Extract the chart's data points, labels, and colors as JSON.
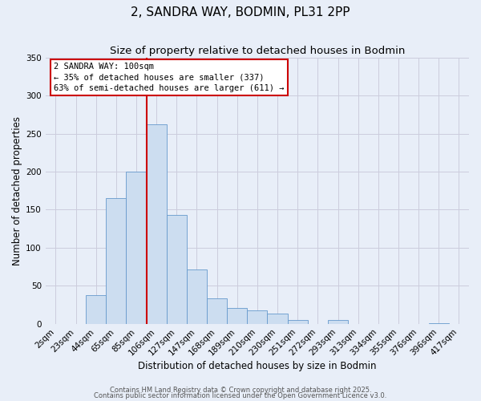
{
  "title": "2, SANDRA WAY, BODMIN, PL31 2PP",
  "subtitle": "Size of property relative to detached houses in Bodmin",
  "xlabel": "Distribution of detached houses by size in Bodmin",
  "ylabel": "Number of detached properties",
  "bar_labels": [
    "2sqm",
    "23sqm",
    "44sqm",
    "65sqm",
    "85sqm",
    "106sqm",
    "127sqm",
    "147sqm",
    "168sqm",
    "189sqm",
    "210sqm",
    "230sqm",
    "251sqm",
    "272sqm",
    "293sqm",
    "313sqm",
    "334sqm",
    "355sqm",
    "376sqm",
    "396sqm",
    "417sqm"
  ],
  "bar_values": [
    0,
    0,
    38,
    165,
    200,
    262,
    143,
    71,
    33,
    21,
    17,
    13,
    5,
    0,
    5,
    0,
    0,
    0,
    0,
    1,
    0
  ],
  "bar_color": "#ccddf0",
  "bar_edge_color": "#6699cc",
  "ylim": [
    0,
    350
  ],
  "yticks": [
    0,
    50,
    100,
    150,
    200,
    250,
    300,
    350
  ],
  "vline_index": 5,
  "vline_color": "#cc0000",
  "annotation_title": "2 SANDRA WAY: 100sqm",
  "annotation_line1": "← 35% of detached houses are smaller (337)",
  "annotation_line2": "63% of semi-detached houses are larger (611) →",
  "annotation_box_facecolor": "#ffffff",
  "annotation_box_edgecolor": "#cc0000",
  "background_color": "#e8eef8",
  "grid_color": "#ccccdd",
  "footer1": "Contains HM Land Registry data © Crown copyright and database right 2025.",
  "footer2": "Contains public sector information licensed under the Open Government Licence v3.0.",
  "title_fontsize": 11,
  "subtitle_fontsize": 9.5,
  "axis_label_fontsize": 8.5,
  "tick_fontsize": 7.5,
  "annotation_fontsize": 7.5,
  "footer_fontsize": 6
}
